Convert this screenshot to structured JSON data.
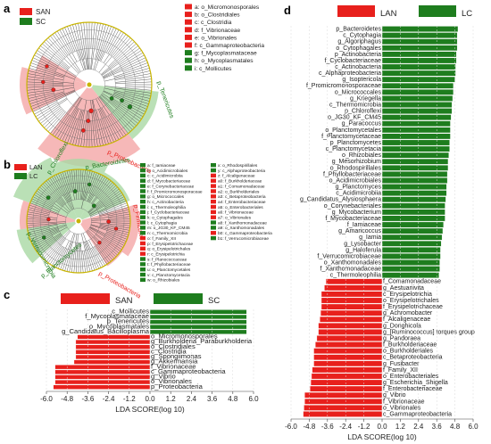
{
  "panels": {
    "a": "a",
    "b": "b",
    "c": "c",
    "d": "d"
  },
  "colors": {
    "red": "#e8201c",
    "green": "#1e7d1e",
    "pink": "#f4a6a6",
    "lightgreen": "#a9d8a4",
    "ring": "#c8b400"
  },
  "a_legend": {
    "groups": [
      {
        "name": "SAN",
        "color": "#e8201c"
      },
      {
        "name": "SC",
        "color": "#1e7d1e"
      }
    ],
    "entries": [
      {
        "text": "a: o_Micromonosporales",
        "color": "#e8201c"
      },
      {
        "text": "b: o_Clostridiales",
        "color": "#e8201c"
      },
      {
        "text": "c: c_Clostridia",
        "color": "#e8201c"
      },
      {
        "text": "d: f_Vibrionaceae",
        "color": "#e8201c"
      },
      {
        "text": "e: o_Vibrionales",
        "color": "#e8201c"
      },
      {
        "text": "f: c_Gammaproteobacteria",
        "color": "#e8201c"
      },
      {
        "text": "g: f_Mycoplasmataceae",
        "color": "#1e7d1e"
      },
      {
        "text": "h: o_Mycoplasmatales",
        "color": "#1e7d1e"
      },
      {
        "text": "i: c_Mollicutes",
        "color": "#1e7d1e"
      }
    ],
    "arc_labels": [
      "p_Tenericutes",
      "p_Proteobacteria"
    ]
  },
  "b_legend": {
    "groups": [
      {
        "name": "LAN",
        "color": "#e8201c"
      },
      {
        "name": "LC",
        "color": "#1e7d1e"
      }
    ],
    "col1": [
      {
        "text": "a: f_Iamiaceae",
        "color": "#1e7d1e"
      },
      {
        "text": "b: o_Acidimicrobiales",
        "color": "#1e7d1e"
      },
      {
        "text": "c: c_Acidimicrobiia",
        "color": "#1e7d1e"
      },
      {
        "text": "d: f_Mycobacteriaceae",
        "color": "#1e7d1e"
      },
      {
        "text": "e: f_Corynebacteriaceae",
        "color": "#1e7d1e"
      },
      {
        "text": "f: f_Promicromonosporaceae",
        "color": "#1e7d1e"
      },
      {
        "text": "g: o_Micrococcales",
        "color": "#1e7d1e"
      },
      {
        "text": "h: c_Actinobacteria",
        "color": "#1e7d1e"
      },
      {
        "text": "i: c_Thermoleophilia",
        "color": "#1e7d1e"
      },
      {
        "text": "j: f_Cyclobacteriaceae",
        "color": "#1e7d1e"
      },
      {
        "text": "k: o_Cytophagales",
        "color": "#1e7d1e"
      },
      {
        "text": "l: c_Cytophagia",
        "color": "#1e7d1e"
      },
      {
        "text": "m: o_JG30_KF_CM45",
        "color": "#1e7d1e"
      },
      {
        "text": "n: c_Thermomicrobia",
        "color": "#1e7d1e"
      },
      {
        "text": "o: f_Family_XII",
        "color": "#e8201c"
      },
      {
        "text": "p: f_Erysipelotrichaceae",
        "color": "#e8201c"
      },
      {
        "text": "q: o_Erysipelotrichales",
        "color": "#e8201c"
      },
      {
        "text": "r: c_Erysipelotrichia",
        "color": "#e8201c"
      },
      {
        "text": "s: f_Planococcaceae",
        "color": "#1e7d1e"
      },
      {
        "text": "t: f_Phyllobacteriaceae",
        "color": "#1e7d1e"
      },
      {
        "text": "u: o_Planctomycetales",
        "color": "#1e7d1e"
      },
      {
        "text": "v: c_Planctomycetacia",
        "color": "#1e7d1e"
      },
      {
        "text": "w: o_Rhizobiales",
        "color": "#1e7d1e"
      }
    ],
    "col2": [
      {
        "text": "x: o_Rhodospirillales",
        "color": "#1e7d1e"
      },
      {
        "text": "y: c_Alphaproteobacteria",
        "color": "#1e7d1e"
      },
      {
        "text": "z: f_Alcaligenaceae",
        "color": "#e8201c"
      },
      {
        "text": "a0: f_Burkholderiaceae",
        "color": "#e8201c"
      },
      {
        "text": "a1: f_Comamonadaceae",
        "color": "#e8201c"
      },
      {
        "text": "a2: o_Burkholderiales",
        "color": "#e8201c"
      },
      {
        "text": "a3: c_Betaproteobacteria",
        "color": "#e8201c"
      },
      {
        "text": "a4: f_Enterobacteriaceae",
        "color": "#e8201c"
      },
      {
        "text": "a5: o_Enterobacteriales",
        "color": "#e8201c"
      },
      {
        "text": "a6: f_Vibrionaceae",
        "color": "#e8201c"
      },
      {
        "text": "a7: o_Vibrionales",
        "color": "#e8201c"
      },
      {
        "text": "a8: f_Xanthomonadaceae",
        "color": "#1e7d1e"
      },
      {
        "text": "a9: o_Xanthomonadales",
        "color": "#1e7d1e"
      },
      {
        "text": "b0: c_Gammaproteobacteria",
        "color": "#e8201c"
      },
      {
        "text": "b1: f_Verrucomicrobiaceae",
        "color": "#1e7d1e"
      }
    ],
    "arc_labels": [
      "p_Chloroflexi",
      "p_Bacteroidetes",
      "p_Firmicutes",
      "p_Proteobacteria",
      "p_Verrucomicrobia",
      "p_Planctomycetes"
    ]
  },
  "chart_data": [
    {
      "panel": "c",
      "type": "bar",
      "orientation": "horizontal",
      "legend": [
        {
          "name": "SAN",
          "color": "#e8201c"
        },
        {
          "name": "SC",
          "color": "#1e7d1e"
        }
      ],
      "xlabel": "LDA SCORE(log 10)",
      "xlim": [
        -6.0,
        6.0
      ],
      "xticks": [
        "-6.0",
        "-4.8",
        "-3.6",
        "-2.4",
        "-1.2",
        "0.0",
        "1.2",
        "2.4",
        "3.6",
        "4.8",
        "6.0"
      ],
      "categories": [
        "c_Mollicutes",
        "f_Mycoplasmataceae",
        "p_Tenericutes",
        "o_Mycoplasmatales",
        "g_Candidatus_Bacilloplasma",
        "o_Micromonosporales",
        "g_Burkholderia_Paraburkholderia",
        "o_Clostridiales",
        "c_Clostridia",
        "g_Spongiimonas",
        "g_Akkermansia",
        "f_Vibrionaceae",
        "c_Gammaproteobacteria",
        "g_Vibrio",
        "o_Vibrionales",
        "p_Proteobacteria"
      ],
      "values": [
        5.6,
        5.6,
        5.6,
        5.6,
        5.6,
        -4.2,
        -4.3,
        -4.3,
        -4.3,
        -4.3,
        -4.4,
        -5.5,
        -5.5,
        -5.5,
        -5.5,
        -5.6
      ],
      "groups": [
        "SC",
        "SC",
        "SC",
        "SC",
        "SC",
        "SAN",
        "SAN",
        "SAN",
        "SAN",
        "SAN",
        "SAN",
        "SAN",
        "SAN",
        "SAN",
        "SAN",
        "SAN"
      ]
    },
    {
      "panel": "d",
      "type": "bar",
      "orientation": "horizontal",
      "legend": [
        {
          "name": "LAN",
          "color": "#e8201c"
        },
        {
          "name": "LC",
          "color": "#1e7d1e"
        }
      ],
      "xlabel": "LDA SCORE(log 10)",
      "xlim": [
        -6.0,
        6.0
      ],
      "xticks": [
        "-6.0",
        "-4.8",
        "-3.6",
        "-2.4",
        "-1.2",
        "0.0",
        "1.2",
        "2.4",
        "3.6",
        "4.8",
        "6.0"
      ],
      "categories": [
        "p_Bacteroidetes",
        "c_Cytophagia",
        "g_Algoriphagus",
        "o_Cytophagales",
        "p_Actinobacteria",
        "f_Cyclobacteriaceae",
        "c_Actinobacteria",
        "c_Alphaproteobacteria",
        "g_Isoptericola",
        "f_Promicromonosporaceae",
        "o_Micrococcales",
        "g_Kriegella",
        "c_Thermomicrobia",
        "p_Chloroflexi",
        "o_JG30_KF_CM45",
        "g_Paracoccus",
        "o_Planctomycetales",
        "f_Planctomycetaceae",
        "p_Planctomycetes",
        "c_Planctomycetacia",
        "o_Rhizobiales",
        "g_Mesorhizobium",
        "o_Rhodospirillales",
        "f_Phyllobacteriaceae",
        "o_Acidimicrobiales",
        "g_Planctomyces",
        "c_Acidimicrobiia",
        "g_Candidatus_Alysiosphaera",
        "o_Corynebacteriales",
        "g_Mycobacterium",
        "f_Mycobacteriaceae",
        "f_Iamiaceae",
        "g_Amaricoccus",
        "g_Iamia",
        "g_Lysobacter",
        "g_Haloferula",
        "f_Verrucomicrobiaceae",
        "o_Xanthomonadales",
        "f_Xanthomonadaceae",
        "c_Thermoleophilia",
        "f_Comamonadaceae",
        "g_Aestuariivita",
        "c_Erysipelotrichia",
        "o_Erysipelotrichales",
        "f_Erysipelotrichaceae",
        "g_Achromobacter",
        "f_Alcaligenaceae",
        "g_Donghicola",
        "g_[Ruminococcus]_torques_group",
        "g_Pandoraea",
        "f_Burkholderiaceae",
        "o_Burkholderiales",
        "c_Betaproteobacteria",
        "g_Fusibacter",
        "f_Family_XII",
        "o_Enterobacteriales",
        "g_Escherichia_Shigella",
        "f_Enterobacteriaceae",
        "g_Vibrio",
        "f_Vibrionaceae",
        "o_Vibrionales",
        "c_Gammaproteobacteria"
      ],
      "values": [
        5.0,
        4.95,
        4.95,
        4.95,
        4.9,
        4.9,
        4.85,
        4.85,
        4.8,
        4.7,
        4.7,
        4.65,
        4.6,
        4.6,
        4.55,
        4.5,
        4.5,
        4.5,
        4.45,
        4.45,
        4.4,
        4.35,
        4.35,
        4.3,
        4.3,
        4.25,
        4.25,
        4.2,
        4.15,
        4.15,
        4.15,
        4.05,
        4.0,
        3.95,
        3.9,
        3.85,
        3.85,
        3.8,
        3.8,
        3.75,
        -3.7,
        -3.8,
        -4.0,
        -4.0,
        -4.0,
        -4.05,
        -4.1,
        -4.2,
        -4.2,
        -4.3,
        -4.4,
        -4.5,
        -4.5,
        -4.5,
        -4.6,
        -4.65,
        -4.7,
        -4.75,
        -5.1,
        -5.1,
        -5.15,
        -5.2
      ],
      "labels": [
        "p_Bacteroidetes",
        "c_Cytophagia",
        "g_Algoriphagus",
        "o_Cytophagales",
        "p_Actinobacteria",
        "f_Cyclobacteriaceae",
        "c_Actinobacteria",
        "c_Alphaproteobacteria",
        "g_Isoptericola",
        "f_Promicromonosporaceae",
        "o_Micrococcales",
        "g_Kriegella",
        "c_Thermomicrobia",
        "p_Chloroflexi",
        "o_JG30_KF_CM45",
        "g_Paracoccus",
        "o_Planctomycetales",
        "f_Planctomycetaceae",
        "p_Planctomycetes",
        "c_Planctomycetacia",
        "o_Rhizobiales",
        "g_Mesorhizobium",
        "o_Rhodospirillales",
        "f_Phyllobacteriaceae",
        "o_Acidimicrobiales",
        "g_Planctomyces",
        "c_Acidimicrobiia",
        "g_Candidatus_Alysiosphaera",
        "o_Corynebacteriales",
        "g_Mycobacterium",
        "f_Mycobacteriaceae",
        "f_Iamiaceae",
        "g_Amaricoccus",
        "g_Iamia",
        "g_Lysobacter",
        "g_Haloferula",
        "f_Verrucomicrobiaceae",
        "o_Xanthomonadales",
        "f_Xanthomonadaceae",
        "c_Thermoleophilia",
        "f_Comamonadaceae",
        "g_Aestuariivita",
        "c_Erysipelotrichia",
        "o_Erysipelotrichales",
        "f_Erysipelotrichaceae",
        "g_Achromobacter",
        "f_Alcaligenaceae",
        "g_Donghicola",
        "g_[Ruminococcus] torques group",
        "g_Pandoraea",
        "f_Burkholderiaceae",
        "o_Burkholderiales",
        "c_Betaproteobacteria",
        "g_Fusibacter",
        "f_Family_XII",
        "o_Enterobacteriales",
        "g_Escherichia_Shigella",
        "f_Enterobacteriaceae",
        "g_Vibrio",
        "f_Vibrionaceae",
        "o_Vibrionales",
        "c_Gammaproteobacteria"
      ]
    }
  ]
}
